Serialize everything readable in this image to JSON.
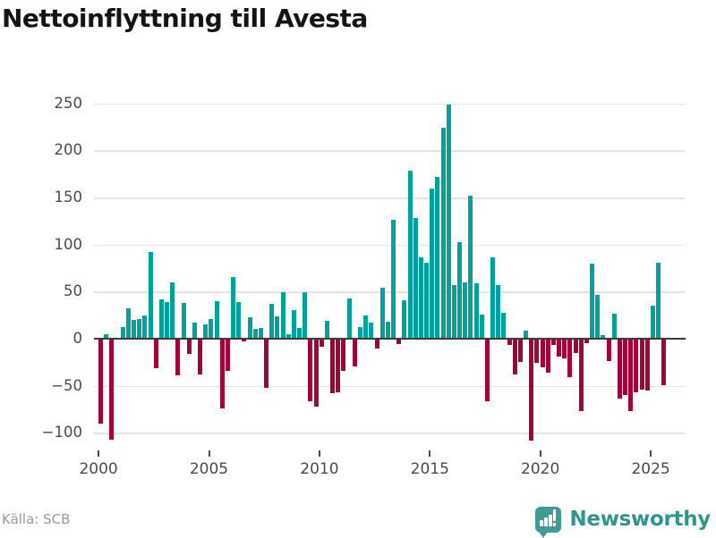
{
  "title": "Nettoinflyttning till Avesta",
  "source": "Källa: SCB",
  "brand": {
    "name": "Newsworthy",
    "icon": "newsworthy-speech-bubble-bar-chart-icon"
  },
  "colors": {
    "positive_bar": "#00a09b",
    "negative_bar": "#a00338",
    "zero_axis": "#3b3b3b",
    "gridline": "#e4e4e4",
    "title_text": "#141414",
    "axis_label_text": "#4a4a4a",
    "source_text": "#9a9a9a",
    "brand_teal": "#2f968e"
  },
  "chart_data": {
    "type": "bar",
    "title": "Nettoinflyttning till Avesta",
    "xlabel": "",
    "ylabel": "",
    "frequency": "quarterly",
    "x_start": "2000 Q1",
    "x_end": "2025 Q3",
    "values": [
      -89,
      5,
      -106,
      0,
      12,
      32,
      20,
      21,
      25,
      92,
      -30,
      42,
      39,
      60,
      -38,
      38,
      -15,
      17,
      -37,
      15,
      21,
      40,
      -73,
      -33,
      66,
      39,
      -2,
      23,
      10,
      11,
      -51,
      37,
      24,
      49,
      5,
      30,
      11,
      49,
      -65,
      -71,
      -7,
      19,
      -57,
      -56,
      -33,
      43,
      -28,
      12,
      25,
      17,
      -9,
      54,
      18,
      126,
      -4,
      41,
      179,
      128,
      86,
      81,
      160,
      172,
      224,
      249,
      57,
      103,
      60,
      152,
      59,
      26,
      -65,
      86,
      57,
      28,
      -5,
      -37,
      -23,
      9,
      -107,
      -24,
      -29,
      -35,
      -5,
      -18,
      -20,
      -40,
      -14,
      -76,
      -3,
      80,
      47,
      4,
      -22,
      27,
      -62,
      -59,
      -76,
      -56,
      -53,
      -54,
      35,
      81,
      -48
    ],
    "yticks": [
      250,
      200,
      150,
      100,
      50,
      0,
      -50,
      -100
    ],
    "xticks": [
      2000,
      2005,
      2010,
      2015,
      2020,
      2025
    ],
    "ylim": [
      -120,
      260
    ],
    "grid": true,
    "legend": "none"
  }
}
